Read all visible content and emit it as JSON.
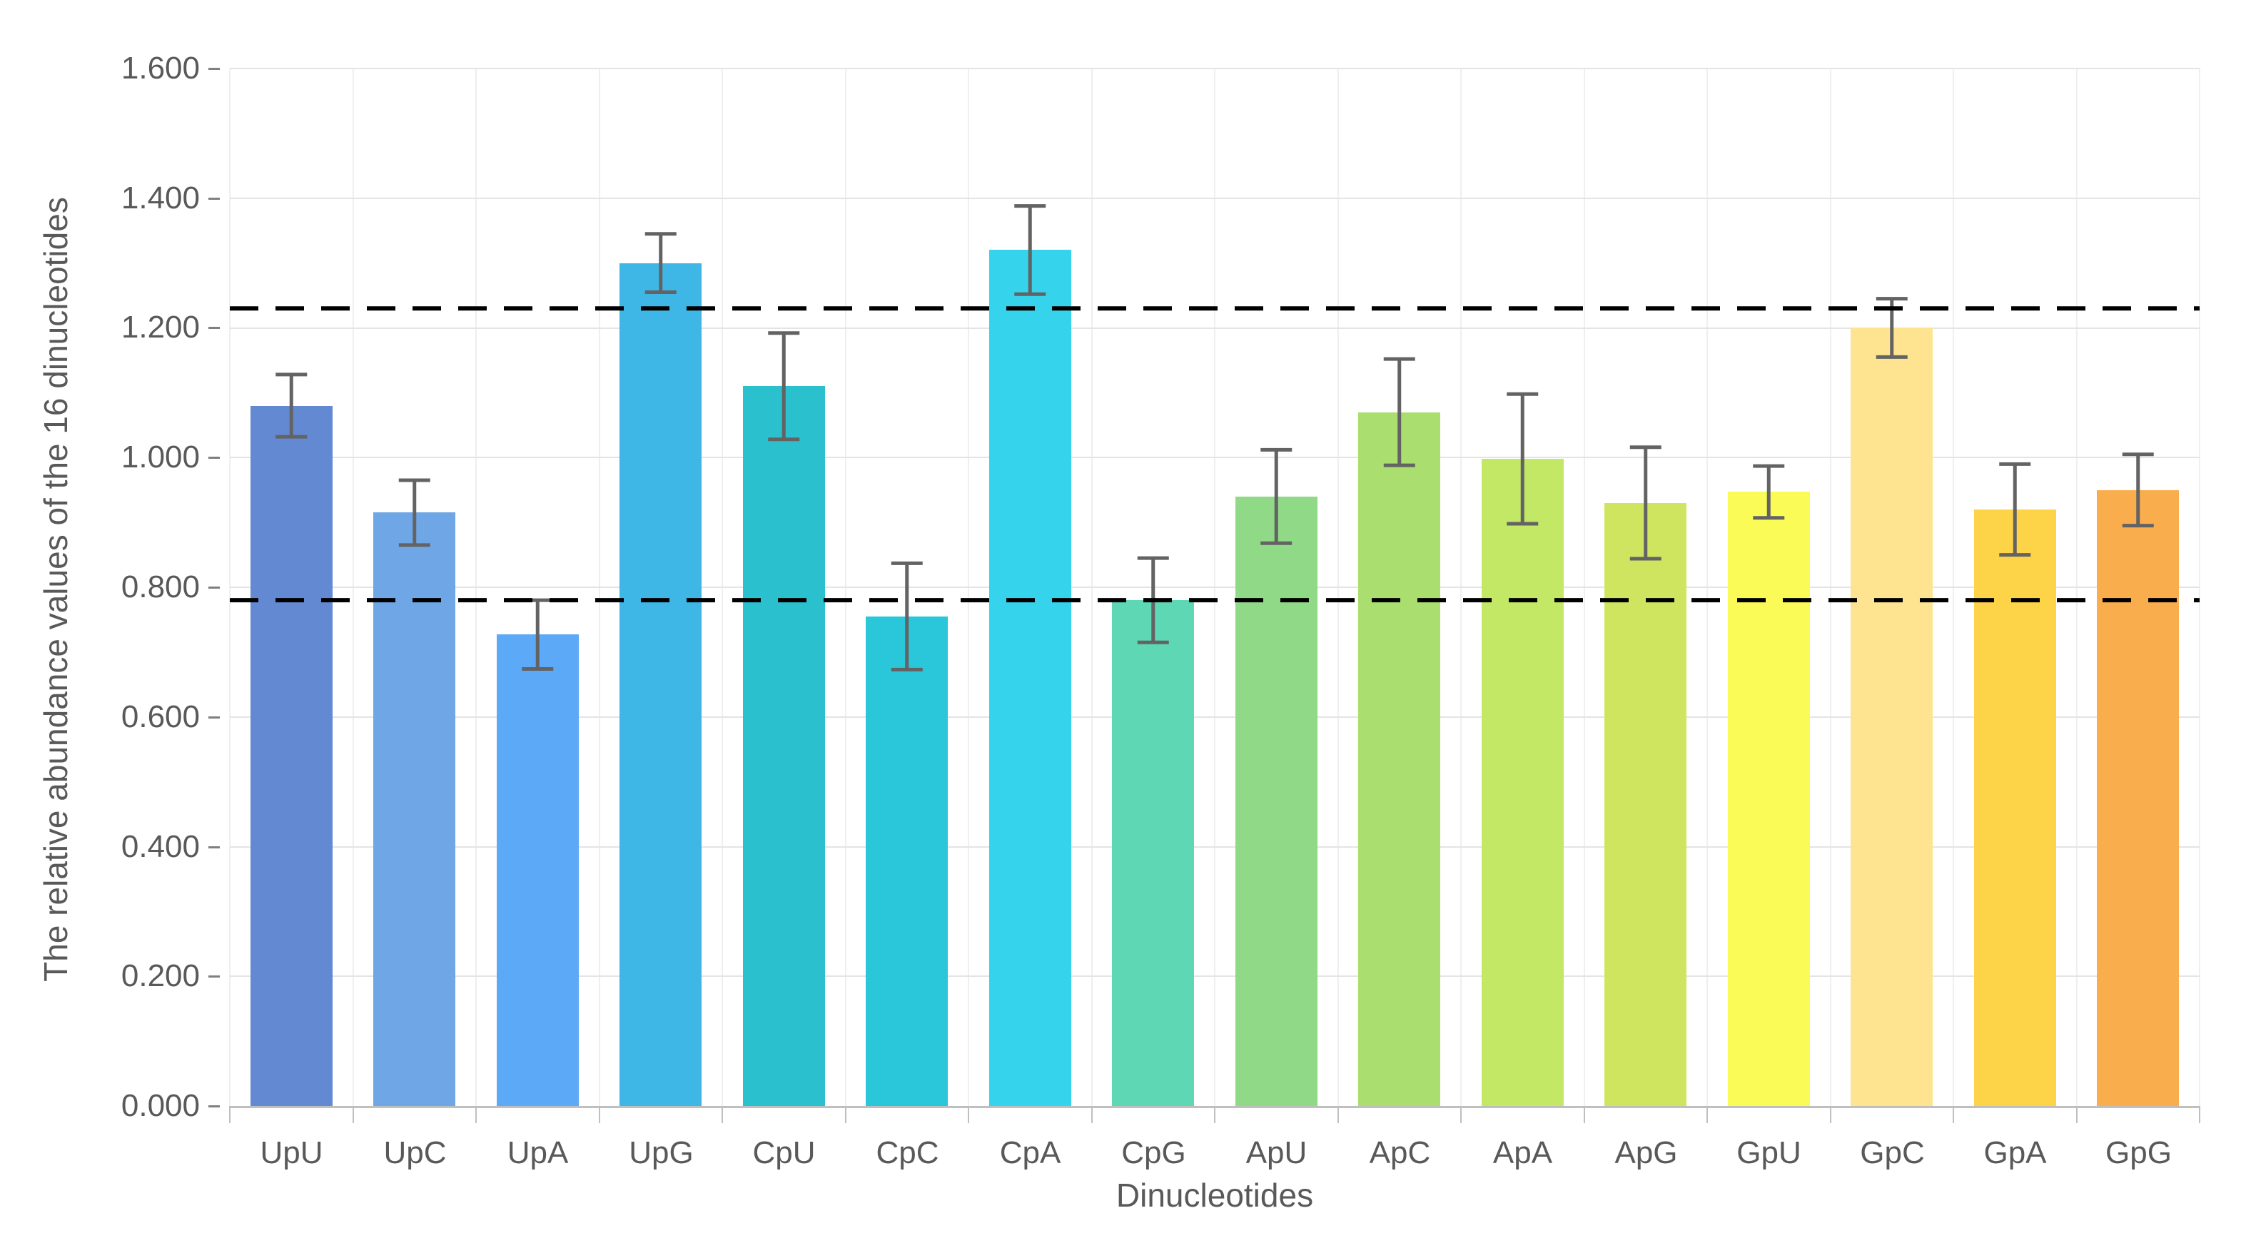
{
  "chart_data": {
    "type": "bar",
    "title": "",
    "xlabel": "Dinucleotides",
    "ylabel": "The relative abundance values of the 16 dinucleotides",
    "categories": [
      "UpU",
      "UpC",
      "UpA",
      "UpG",
      "CpU",
      "CpC",
      "CpA",
      "CpG",
      "ApU",
      "ApC",
      "ApA",
      "ApG",
      "GpU",
      "GpC",
      "GpA",
      "GpG"
    ],
    "values": [
      1.08,
      0.915,
      0.727,
      1.3,
      1.11,
      0.755,
      1.32,
      0.78,
      0.94,
      1.07,
      0.998,
      0.93,
      0.947,
      1.2,
      0.92,
      0.95
    ],
    "errors": [
      0.048,
      0.05,
      0.053,
      0.045,
      0.082,
      0.082,
      0.068,
      0.065,
      0.072,
      0.082,
      0.1,
      0.086,
      0.04,
      0.045,
      0.07,
      0.055
    ],
    "bar_colors": [
      "#6389D3",
      "#6FA7E6",
      "#5CA9F7",
      "#3EB7E6",
      "#2AC0CD",
      "#2AC7DA",
      "#36D3ED",
      "#5ED7B5",
      "#90D987",
      "#AADF70",
      "#C3E866",
      "#D0E55F",
      "#FBFB58",
      "#FEE490",
      "#FDD347",
      "#FAAD4D"
    ],
    "reference_lines": [
      {
        "value": 1.23,
        "style": "dashed",
        "color": "#000000"
      },
      {
        "value": 0.78,
        "style": "dashed",
        "color": "#000000"
      }
    ],
    "ylim": [
      0,
      1.6
    ],
    "ytick_step": 0.2,
    "yticks": [
      "0.000",
      "0.200",
      "0.400",
      "0.600",
      "0.800",
      "1.000",
      "1.200",
      "1.400",
      "1.600"
    ],
    "grid": true,
    "legend": "none",
    "bar_width_fraction": 0.667,
    "error_bar_color": "#636363",
    "axis_text_color": "#595959",
    "gridline_color": "#E4E4E4",
    "vertical_gridline_color": "#EFEFEF",
    "axis_line_color": "#BFBFBF"
  }
}
